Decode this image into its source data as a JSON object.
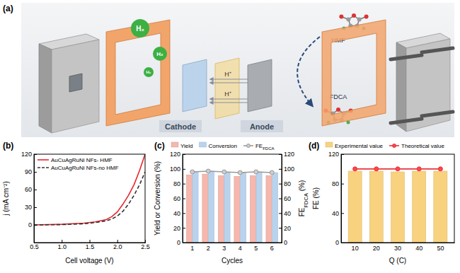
{
  "chart_data": [
    {
      "type": "diagram",
      "title": "(a)",
      "labels": [
        "H₂",
        "H₂",
        "H₂",
        "H⁺",
        "H⁺",
        "HMF",
        "FDCA",
        "Cathode",
        "Anode"
      ]
    },
    {
      "type": "line",
      "title": "(b)",
      "x_label": "Cell voltage (V)",
      "y_label": "j (mA cm⁻²)",
      "x": [
        0.5,
        1.0,
        1.4,
        1.6,
        1.8,
        1.9,
        2.0,
        2.1,
        2.2,
        2.3,
        2.4,
        2.5
      ],
      "series": [
        {
          "name": "AuCuAgRuNi NFs- HMF",
          "color": "#e8262d",
          "line_style": "solid",
          "values": [
            0,
            1,
            3,
            5,
            9,
            14,
            22,
            35,
            50,
            68,
            92,
            120
          ]
        },
        {
          "name": "AuCuAgRuNi NFs-no HMF",
          "color": "#333333",
          "line_style": "dashed",
          "values": [
            0,
            0.5,
            2,
            4,
            7,
            10,
            15,
            23,
            35,
            50,
            68,
            90
          ]
        }
      ],
      "xlim": [
        0.5,
        2.5
      ],
      "xticks": [
        0.5,
        {
          "value": 1,
          "label": "1.0"
        },
        1.5,
        {
          "value": 2,
          "label": "2.0"
        },
        2.5
      ],
      "ylim": [
        -30,
        120
      ],
      "yticks": [
        0,
        30,
        60,
        90,
        120
      ],
      "legend": "upper left"
    },
    {
      "type": "bar",
      "title": "(c)",
      "x_label": "Cycles",
      "y_label": "Yield or Conversion (%)",
      "y2_label": "FEFDCA (%)",
      "categories": [
        "1",
        "2",
        "3",
        "4",
        "5",
        "6"
      ],
      "series": [
        {
          "name": "Yield",
          "color": "#f5b7ae",
          "values": [
            92,
            93,
            91,
            90,
            91,
            91
          ]
        },
        {
          "name": "Conversion",
          "color": "#b9d3ee",
          "values": [
            96,
            97,
            95,
            95,
            96,
            95
          ]
        },
        {
          "name": "FEFDCA",
          "type": "line",
          "axis": "y2",
          "color": "#9a9a9a",
          "marker": "circle",
          "values": [
            96,
            97,
            96,
            95,
            96,
            95
          ]
        }
      ],
      "ylim": [
        0,
        120
      ],
      "yticks": [
        0,
        20,
        40,
        60,
        80,
        100,
        120
      ],
      "y2lim": [
        0,
        120
      ],
      "y2ticks": [
        0,
        20,
        40,
        60,
        80,
        100,
        120
      ],
      "legend": "top"
    },
    {
      "type": "bar",
      "title": "(d)",
      "x_label": "Q (C)",
      "y_label": "FE (%)",
      "categories": [
        "10",
        "20",
        "30",
        "40",
        "50"
      ],
      "series": [
        {
          "name": "Experimental value",
          "color": "#f8d27f",
          "values": [
            97,
            97,
            96,
            97,
            97
          ]
        },
        {
          "name": "Theoretical value",
          "type": "line",
          "color": "#e8333a",
          "marker": "circle",
          "values": [
            100,
            100,
            100,
            100,
            100
          ]
        }
      ],
      "ylim": [
        0,
        120
      ],
      "yticks": [
        0,
        40,
        80,
        120
      ],
      "legend": "top"
    }
  ]
}
